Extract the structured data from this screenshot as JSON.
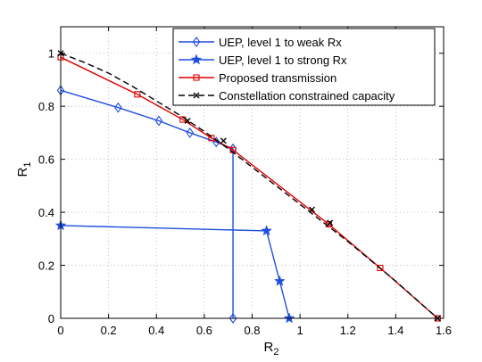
{
  "chart_data": {
    "type": "line",
    "title": "",
    "xlabel": "R",
    "xlabel_sub": "2",
    "ylabel": "R",
    "ylabel_sub": "1",
    "xlim": [
      0,
      1.6
    ],
    "ylim": [
      0,
      1.1
    ],
    "xticks": [
      0,
      0.2,
      0.4,
      0.6,
      0.8,
      1,
      1.2,
      1.4,
      1.6
    ],
    "xtick_labels": [
      "0",
      "0.2",
      "0.4",
      "0.6",
      "0.8",
      "1",
      "1.2",
      "1.4",
      "1.6"
    ],
    "yticks": [
      0,
      0.2,
      0.4,
      0.6,
      0.8,
      1
    ],
    "ytick_labels": [
      "0",
      "0.2",
      "0.4",
      "0.6",
      "0.8",
      "1"
    ],
    "grid": true,
    "legend_position": "top-right",
    "series": [
      {
        "name": "UEP, level 1 to weak Rx",
        "color": "#1f4fe0",
        "line": "solid",
        "marker": "diamond",
        "x": [
          0,
          0.24,
          0.41,
          0.54,
          0.65,
          0.72,
          0.72
        ],
        "y": [
          0.86,
          0.795,
          0.745,
          0.7,
          0.665,
          0.64,
          0.0
        ]
      },
      {
        "name": "UEP, level 1 to strong Rx",
        "color": "#1f4fe0",
        "line": "solid",
        "marker": "star",
        "x": [
          0,
          0.86,
          0.915,
          0.955
        ],
        "y": [
          0.35,
          0.33,
          0.14,
          0.0
        ]
      },
      {
        "name": "Proposed transmission",
        "color": "#e00000",
        "line": "solid",
        "marker": "square",
        "x": [
          0,
          0.32,
          0.51,
          0.63,
          0.72,
          1.12,
          1.335,
          1.575
        ],
        "y": [
          0.985,
          0.845,
          0.75,
          0.68,
          0.635,
          0.355,
          0.19,
          0.0
        ]
      },
      {
        "name": "Constellation constrained capacity",
        "color": "#000000",
        "line": "dashed",
        "marker": "x",
        "x": [
          0,
          0.53,
          0.68,
          1.05,
          1.125,
          1.575
        ],
        "y": [
          1.0,
          0.745,
          0.67,
          0.41,
          0.36,
          0.0
        ],
        "curve_x": [
          0,
          0.1,
          0.2,
          0.3,
          0.4,
          0.5,
          0.6,
          0.7,
          0.8,
          0.9,
          1.0,
          1.1,
          1.2,
          1.3,
          1.4,
          1.5,
          1.575
        ],
        "curve_y": [
          1.0,
          0.965,
          0.925,
          0.875,
          0.82,
          0.765,
          0.705,
          0.64,
          0.57,
          0.5,
          0.43,
          0.36,
          0.29,
          0.215,
          0.14,
          0.06,
          0.0
        ]
      }
    ]
  }
}
